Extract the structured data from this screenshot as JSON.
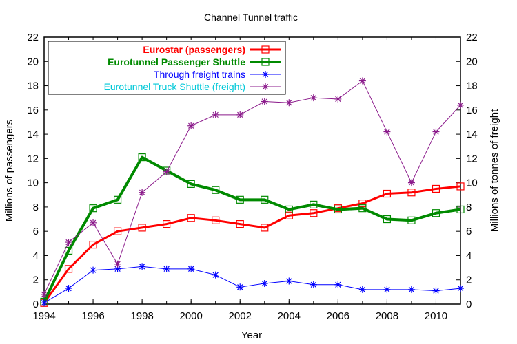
{
  "chart_data": {
    "type": "line",
    "title": "Channel Tunnel traffic",
    "xlabel": "Year",
    "ylabel": "Millions of passengers",
    "y2label": "Millions of tonnes of freight",
    "xlim": [
      1994,
      2011
    ],
    "ylim": [
      0,
      22
    ],
    "y2lim": [
      0,
      22
    ],
    "x_ticks": [
      "1994",
      "1996",
      "1998",
      "2000",
      "2002",
      "2004",
      "2006",
      "2008",
      "2010"
    ],
    "y_ticks": [
      "0",
      "2",
      "4",
      "6",
      "8",
      "10",
      "12",
      "14",
      "16",
      "18",
      "20",
      "22"
    ],
    "grid": false,
    "legend_position": "top-left",
    "x": [
      1994,
      1995,
      1996,
      1997,
      1998,
      1999,
      2000,
      2001,
      2002,
      2003,
      2004,
      2005,
      2006,
      2007,
      2008,
      2009,
      2010,
      2011
    ],
    "series": [
      {
        "name": "Eurostar (passengers)",
        "color": "#ff0000",
        "marker": "square",
        "width": 3,
        "bold_label": true,
        "axis": "left",
        "values": [
          0.1,
          2.9,
          4.9,
          6.0,
          6.3,
          6.6,
          7.1,
          6.9,
          6.6,
          6.3,
          7.3,
          7.5,
          7.9,
          8.3,
          9.1,
          9.2,
          9.5,
          9.7
        ]
      },
      {
        "name": "Eurotunnel Passenger Shuttle",
        "color": "#008a00",
        "marker": "square",
        "width": 4,
        "bold_label": true,
        "axis": "left",
        "values": [
          0.2,
          4.4,
          7.9,
          8.6,
          12.1,
          11.0,
          9.9,
          9.4,
          8.6,
          8.6,
          7.8,
          8.2,
          7.8,
          7.9,
          7.0,
          6.9,
          7.5,
          7.8
        ]
      },
      {
        "name": "Through freight trains",
        "color": "#0000ff",
        "marker": "star",
        "width": 1,
        "bold_label": false,
        "axis": "right",
        "values": [
          0.1,
          1.3,
          2.8,
          2.9,
          3.1,
          2.9,
          2.9,
          2.4,
          1.4,
          1.7,
          1.9,
          1.6,
          1.6,
          1.2,
          1.2,
          1.2,
          1.1,
          1.3
        ]
      },
      {
        "name": "Eurotunnel Truck Shuttle (freight)",
        "color": "#8b1a8b",
        "marker": "star",
        "width": 1,
        "bold_label": false,
        "axis": "right",
        "legend_text_color": "#00c8d8",
        "values": [
          0.8,
          5.1,
          6.7,
          3.3,
          9.2,
          10.9,
          14.7,
          15.6,
          15.6,
          16.7,
          16.6,
          17.0,
          16.9,
          18.4,
          14.2,
          10.0,
          14.2,
          16.4
        ]
      }
    ]
  }
}
